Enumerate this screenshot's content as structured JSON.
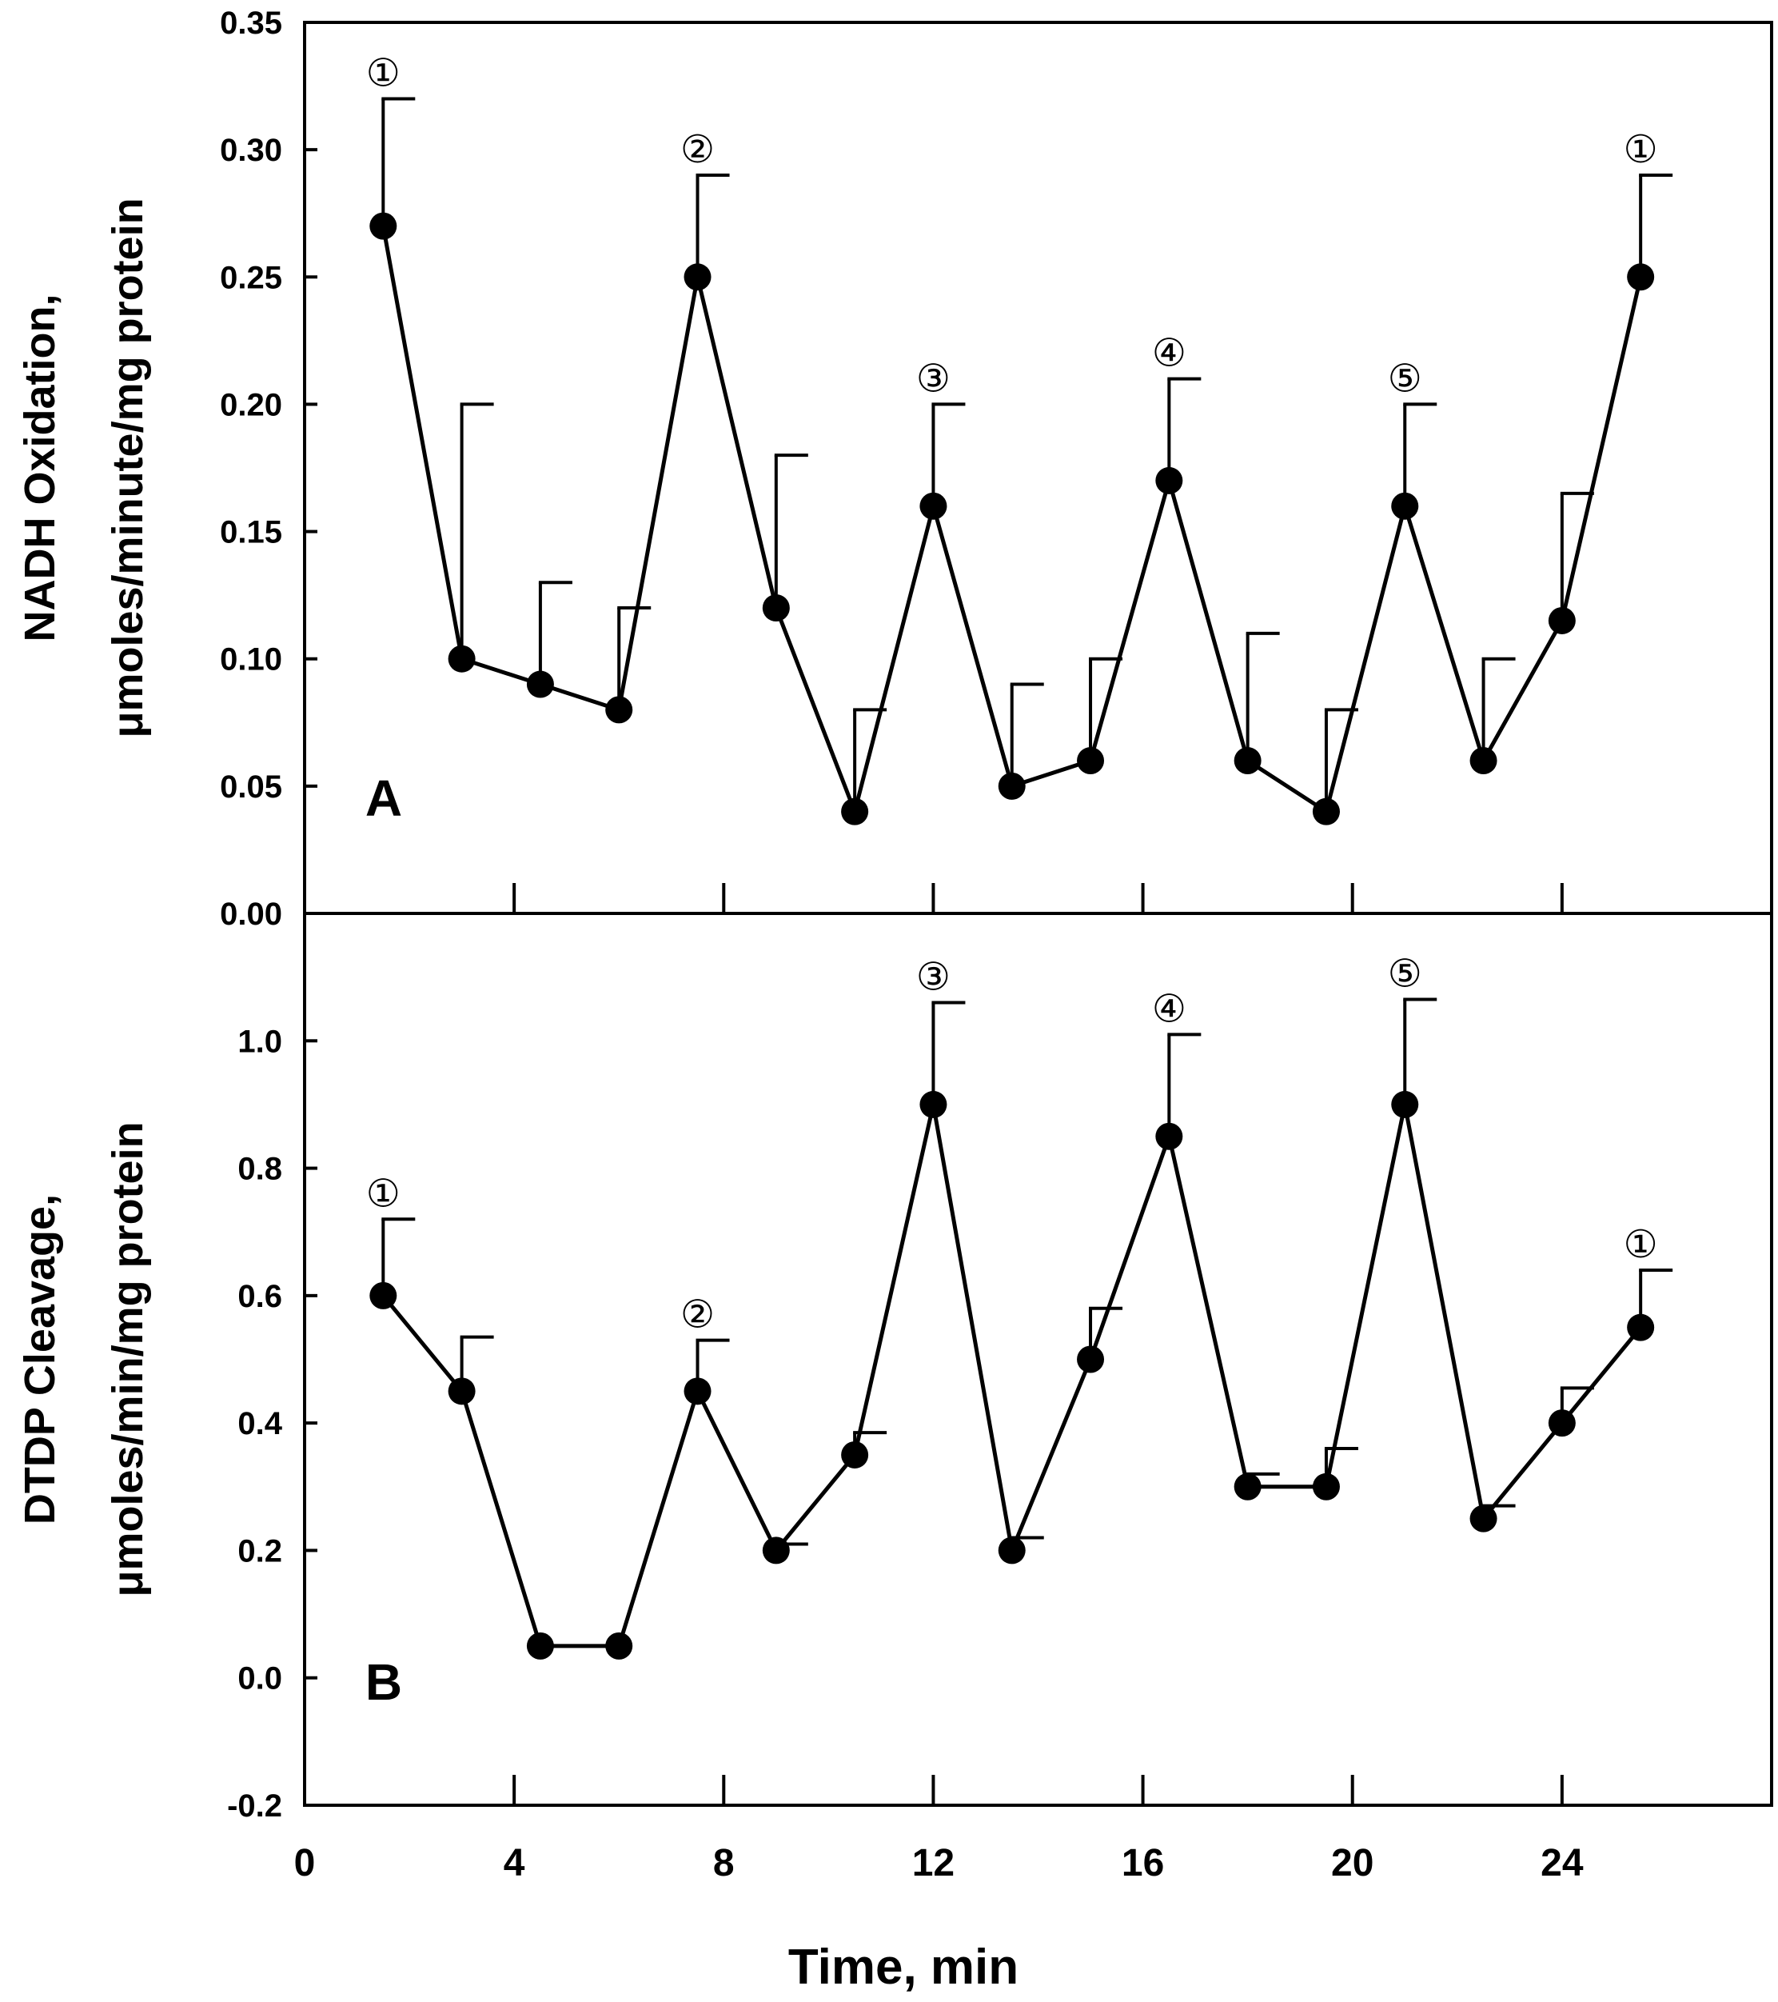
{
  "chart_data": [
    {
      "type": "line",
      "panel_label": "A",
      "ylabel_line1": "NADH Oxidation,",
      "ylabel_line2": "μmoles/minute/mg protein",
      "xlabel": "",
      "xlim": [
        0,
        28
      ],
      "ylim": [
        0,
        0.35
      ],
      "yticks": [
        "0.00",
        "0.05",
        "0.10",
        "0.15",
        "0.20",
        "0.25",
        "0.30",
        "0.35"
      ],
      "xticks": [
        4,
        8,
        12,
        16,
        20,
        24
      ],
      "grid": false,
      "legend": "none",
      "error_bars": "upper only",
      "x": [
        1.5,
        3,
        4.5,
        6,
        7.5,
        9,
        10.5,
        12,
        13.5,
        15,
        16.5,
        18,
        19.5,
        21,
        22.5,
        24,
        25.5
      ],
      "y": [
        0.27,
        0.1,
        0.09,
        0.08,
        0.25,
        0.12,
        0.04,
        0.16,
        0.05,
        0.06,
        0.17,
        0.06,
        0.04,
        0.16,
        0.06,
        0.115,
        0.25
      ],
      "y_err_upper": [
        0.32,
        0.2,
        0.13,
        0.12,
        0.29,
        0.18,
        0.08,
        0.2,
        0.09,
        0.1,
        0.21,
        0.11,
        0.08,
        0.2,
        0.1,
        0.165,
        0.29
      ],
      "point_labels": [
        {
          "index": 0,
          "text": "①"
        },
        {
          "index": 4,
          "text": "②"
        },
        {
          "index": 7,
          "text": "③"
        },
        {
          "index": 10,
          "text": "④"
        },
        {
          "index": 13,
          "text": "⑤"
        },
        {
          "index": 16,
          "text": "①"
        }
      ]
    },
    {
      "type": "line",
      "panel_label": "B",
      "ylabel_line1": "DTDP Cleavage,",
      "ylabel_line2": "μmoles/min/mg protein",
      "xlabel": "Time, min",
      "xlim": [
        0,
        28
      ],
      "ylim": [
        -0.2,
        1.2
      ],
      "yticks": [
        "-0.2",
        "0.0",
        "0.2",
        "0.4",
        "0.6",
        "0.8",
        "1.0"
      ],
      "xticks": [
        "0",
        "4",
        "8",
        "12",
        "16",
        "20",
        "24"
      ],
      "grid": false,
      "legend": "none",
      "error_bars": "upper only",
      "x": [
        1.5,
        3,
        4.5,
        6,
        7.5,
        9,
        10.5,
        12,
        13.5,
        15,
        16.5,
        18,
        19.5,
        21,
        22.5,
        24,
        25.5
      ],
      "y": [
        0.6,
        0.45,
        0.05,
        0.05,
        0.45,
        0.2,
        0.35,
        0.9,
        0.2,
        0.5,
        0.85,
        0.3,
        0.3,
        0.9,
        0.25,
        0.4,
        0.55
      ],
      "y_err_upper": [
        0.72,
        0.535,
        null,
        null,
        0.53,
        0.21,
        0.385,
        1.06,
        0.22,
        0.58,
        1.01,
        0.32,
        0.36,
        1.065,
        0.27,
        0.455,
        0.64
      ],
      "point_labels": [
        {
          "index": 0,
          "text": "①"
        },
        {
          "index": 4,
          "text": "②"
        },
        {
          "index": 7,
          "text": "③"
        },
        {
          "index": 10,
          "text": "④"
        },
        {
          "index": 13,
          "text": "⑤"
        },
        {
          "index": 16,
          "text": "①"
        }
      ]
    }
  ]
}
